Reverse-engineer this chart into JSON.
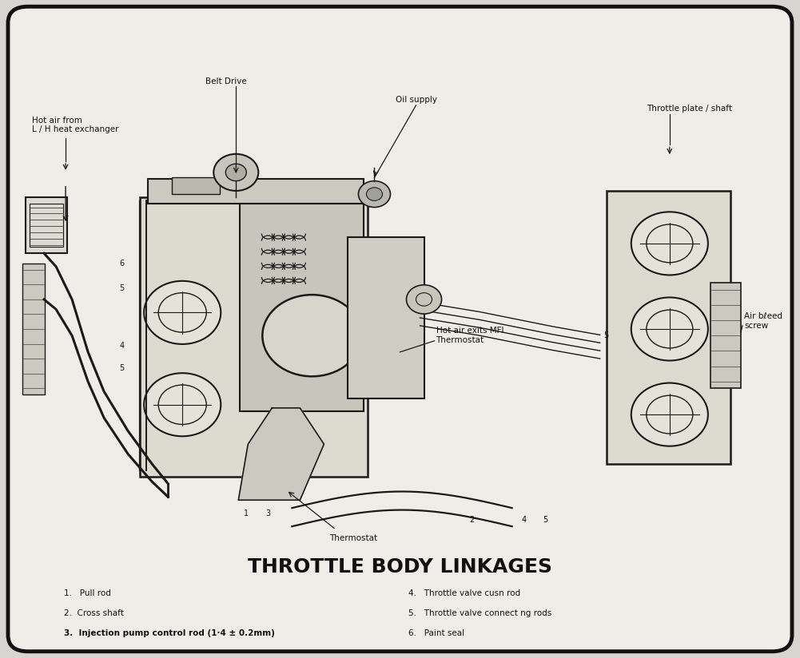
{
  "title": "THROTTLE BODY LINKAGES",
  "title_fontsize": 18,
  "title_fontweight": "bold",
  "background_color": "#d8d5d0",
  "panel_color": "#f0ede8",
  "border_color": "#111111",
  "text_color": "#111111",
  "label_hot_air": "Hot air from\nL / H heat exchanger",
  "label_belt_drive": "Belt Drive",
  "label_oil_supply": "Oil supply",
  "label_throttle_plate": "Throttle plate / shaft",
  "label_hot_air_exits": "Hot air exits MFI\nThermostat",
  "label_thermostat": "Thermostat",
  "label_air_bleed": "Air bℓeed\nscrew",
  "legend_items_left": [
    "1.   Pull rod",
    "2.  Cross shaft",
    "3.  Injection pump control rod (1·4 ± 0.2mm)"
  ],
  "legend_items_right": [
    "4.   Throttle valve cusn rod",
    "5.   Throttle valve connect ng rods",
    "6.   Paint seal"
  ],
  "line_color": "#1a1a1a",
  "line_width": 0.8
}
